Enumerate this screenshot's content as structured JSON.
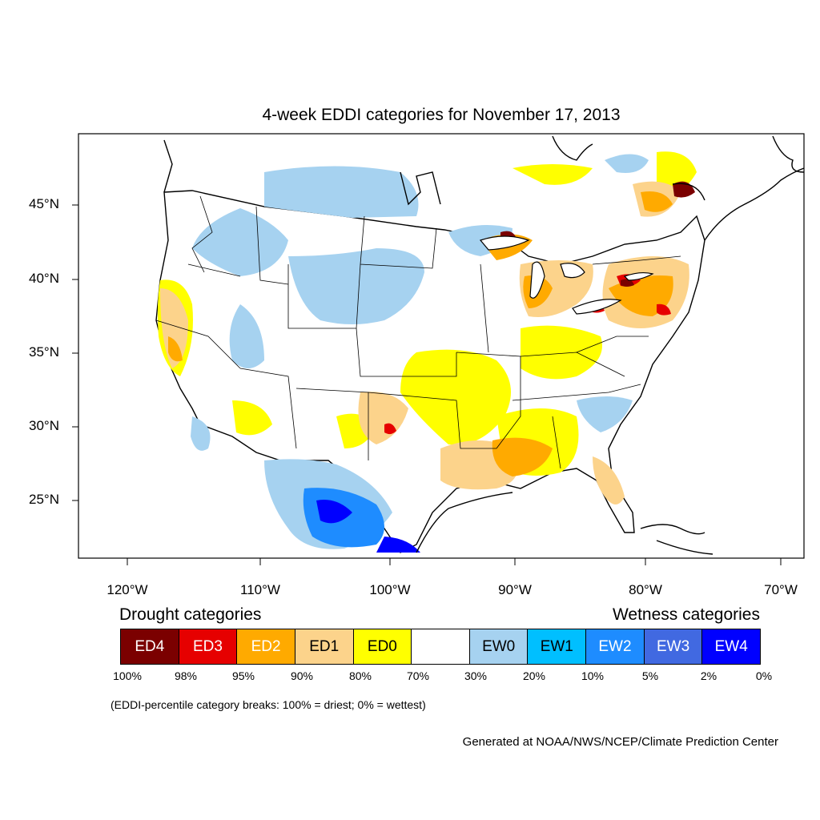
{
  "title": "4-week EDDI categories for November 17, 2013",
  "lat_labels": [
    "45°N",
    "40°N",
    "35°N",
    "30°N",
    "25°N"
  ],
  "lon_labels": [
    "120°W",
    "110°W",
    "100°W",
    "90°W",
    "80°W",
    "70°W"
  ],
  "legend": {
    "drought_heading": "Drought categories",
    "wetness_heading": "Wetness categories",
    "categories": [
      {
        "label": "ED4",
        "color": "#7b0000",
        "text_color": "#ffffff"
      },
      {
        "label": "ED3",
        "color": "#e60000",
        "text_color": "#ffffff"
      },
      {
        "label": "ED2",
        "color": "#ffaa00",
        "text_color": "#ffffff"
      },
      {
        "label": "ED1",
        "color": "#fcd38b",
        "text_color": "#000000"
      },
      {
        "label": "ED0",
        "color": "#ffff00",
        "text_color": "#000000"
      },
      {
        "label": "",
        "color": "#ffffff",
        "text_color": "#000000"
      },
      {
        "label": "EW0",
        "color": "#a6d2f0",
        "text_color": "#000000"
      },
      {
        "label": "EW1",
        "color": "#00bfff",
        "text_color": "#000000"
      },
      {
        "label": "EW2",
        "color": "#1e8cff",
        "text_color": "#ffffff"
      },
      {
        "label": "EW3",
        "color": "#4169e1",
        "text_color": "#ffffff"
      },
      {
        "label": "EW4",
        "color": "#0000ff",
        "text_color": "#ffffff"
      }
    ],
    "breaks": [
      "100%",
      "98%",
      "95%",
      "90%",
      "80%",
      "70%",
      "30%",
      "20%",
      "10%",
      "5%",
      "2%",
      "0%"
    ]
  },
  "note": "(EDDI-percentile category breaks: 100% = driest; 0% = wettest)",
  "credit": "Generated at NOAA/NWS/NCEP/Climate Prediction Center"
}
